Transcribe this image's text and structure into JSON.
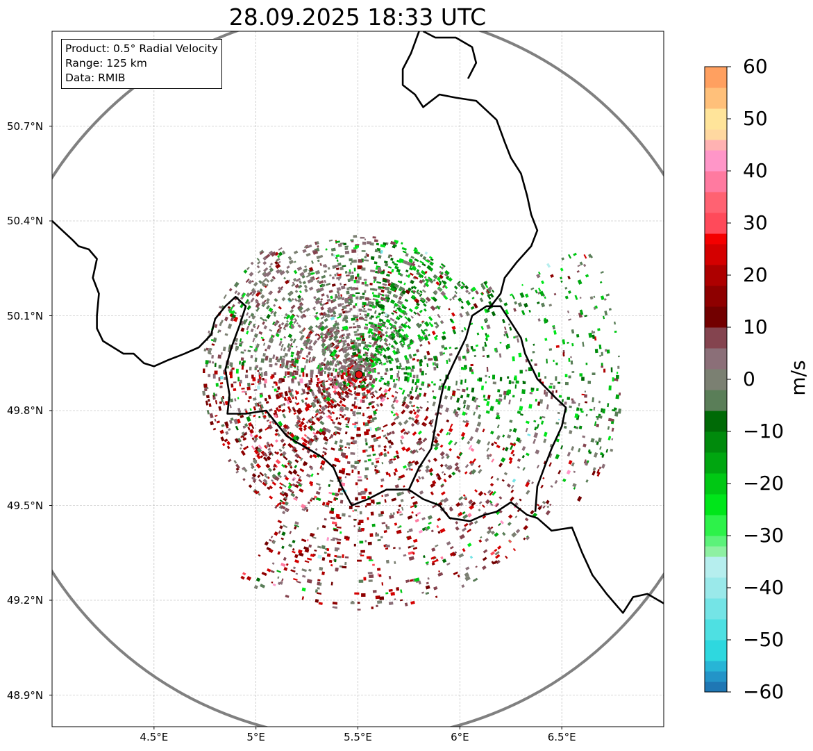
{
  "title": "28.09.2025 18:33 UTC",
  "info": {
    "product": "Product: 0.5° Radial Velocity",
    "range": "Range: 125 km",
    "data": "Data: RMIB"
  },
  "map_extent": {
    "lon_min": 4.0,
    "lon_max": 7.0,
    "lat_min": 48.8,
    "lat_max": 51.0
  },
  "lat_ticks": [
    {
      "value": 50.7,
      "label": "50.7°N"
    },
    {
      "value": 50.4,
      "label": "50.4°N"
    },
    {
      "value": 50.1,
      "label": "50.1°N"
    },
    {
      "value": 49.8,
      "label": "49.8°N"
    },
    {
      "value": 49.5,
      "label": "49.5°N"
    },
    {
      "value": 49.2,
      "label": "49.2°N"
    },
    {
      "value": 48.9,
      "label": "48.9°N"
    }
  ],
  "lon_ticks": [
    {
      "value": 4.5,
      "label": "4.5°E"
    },
    {
      "value": 5.0,
      "label": "5°E"
    },
    {
      "value": 5.5,
      "label": "5.5°E"
    },
    {
      "value": 6.0,
      "label": "6°E"
    },
    {
      "value": 6.5,
      "label": "6.5°E"
    }
  ],
  "radar_site": {
    "lon": 5.505,
    "lat": 49.914,
    "color": "#e81010"
  },
  "range_ring_km": 125,
  "colorbar": {
    "label": "m/s",
    "min": -60,
    "max": 60,
    "ticks": [
      "60",
      "50",
      "40",
      "30",
      "20",
      "10",
      "0",
      "−10",
      "−20",
      "−30",
      "−40",
      "−50",
      "−60"
    ],
    "stops": [
      {
        "from": -60,
        "to": -58,
        "color": "#1f77b4"
      },
      {
        "from": -58,
        "to": -56,
        "color": "#2394c8"
      },
      {
        "from": -56,
        "to": -54,
        "color": "#27b5d6"
      },
      {
        "from": -54,
        "to": -50,
        "color": "#2ed8df"
      },
      {
        "from": -50,
        "to": -46,
        "color": "#4ee0e2"
      },
      {
        "from": -46,
        "to": -42,
        "color": "#74e4e6"
      },
      {
        "from": -42,
        "to": -38,
        "color": "#9ae9ea"
      },
      {
        "from": -38,
        "to": -34,
        "color": "#b6eeee"
      },
      {
        "from": -34,
        "to": -32,
        "color": "#8ef0a2"
      },
      {
        "from": -32,
        "to": -30,
        "color": "#5cf27a"
      },
      {
        "from": -30,
        "to": -26,
        "color": "#2df24a"
      },
      {
        "from": -26,
        "to": -22,
        "color": "#00e61a"
      },
      {
        "from": -22,
        "to": -18,
        "color": "#00c814"
      },
      {
        "from": -18,
        "to": -14,
        "color": "#00a610"
      },
      {
        "from": -14,
        "to": -10,
        "color": "#008a0c"
      },
      {
        "from": -10,
        "to": -6,
        "color": "#006a06"
      },
      {
        "from": -6,
        "to": -2,
        "color": "#5a7e58"
      },
      {
        "from": -2,
        "to": 2,
        "color": "#7b8072"
      },
      {
        "from": 2,
        "to": 6,
        "color": "#8b6f78"
      },
      {
        "from": 6,
        "to": 10,
        "color": "#84444f"
      },
      {
        "from": 10,
        "to": 14,
        "color": "#720000"
      },
      {
        "from": 14,
        "to": 18,
        "color": "#8e0000"
      },
      {
        "from": 18,
        "to": 22,
        "color": "#ad0000"
      },
      {
        "from": 22,
        "to": 26,
        "color": "#d40000"
      },
      {
        "from": 26,
        "to": 28,
        "color": "#f40000"
      },
      {
        "from": 28,
        "to": 32,
        "color": "#ff4a5a"
      },
      {
        "from": 32,
        "to": 36,
        "color": "#ff6272"
      },
      {
        "from": 36,
        "to": 40,
        "color": "#ff7aa0"
      },
      {
        "from": 40,
        "to": 44,
        "color": "#ff96c8"
      },
      {
        "from": 44,
        "to": 46,
        "color": "#ffb2b2"
      },
      {
        "from": 46,
        "to": 48,
        "color": "#ffd8a0"
      },
      {
        "from": 48,
        "to": 52,
        "color": "#ffe49a"
      },
      {
        "from": 52,
        "to": 56,
        "color": "#ffc07a"
      },
      {
        "from": 56,
        "to": 60,
        "color": "#ffa060"
      }
    ]
  },
  "colors": {
    "ring": "#808080",
    "border": "#000000",
    "grid": "#b0b0b0"
  },
  "borders": [
    [
      [
        4.0,
        50.4
      ],
      [
        4.05,
        50.37
      ],
      [
        4.1,
        50.34
      ],
      [
        4.13,
        50.32
      ],
      [
        4.18,
        50.31
      ],
      [
        4.22,
        50.28
      ],
      [
        4.2,
        50.22
      ],
      [
        4.23,
        50.17
      ],
      [
        4.22,
        50.1
      ],
      [
        4.22,
        50.06
      ],
      [
        4.25,
        50.02
      ],
      [
        4.3,
        50.0
      ],
      [
        4.35,
        49.98
      ],
      [
        4.4,
        49.98
      ],
      [
        4.45,
        49.95
      ],
      [
        4.5,
        49.94
      ],
      [
        4.57,
        49.96
      ],
      [
        4.65,
        49.98
      ],
      [
        4.72,
        50.0
      ],
      [
        4.78,
        50.04
      ],
      [
        4.8,
        50.09
      ],
      [
        4.85,
        50.13
      ],
      [
        4.9,
        50.16
      ],
      [
        4.95,
        50.13
      ],
      [
        4.92,
        50.07
      ],
      [
        4.88,
        50.0
      ],
      [
        4.85,
        49.93
      ],
      [
        4.87,
        49.85
      ],
      [
        4.86,
        49.79
      ],
      [
        4.95,
        49.79
      ],
      [
        5.05,
        49.8
      ],
      [
        5.1,
        49.76
      ],
      [
        5.15,
        49.72
      ],
      [
        5.2,
        49.7
      ],
      [
        5.28,
        49.67
      ],
      [
        5.33,
        49.65
      ],
      [
        5.38,
        49.62
      ],
      [
        5.42,
        49.56
      ],
      [
        5.47,
        49.5
      ],
      [
        5.55,
        49.52
      ],
      [
        5.64,
        49.55
      ],
      [
        5.75,
        49.55
      ],
      [
        5.82,
        49.52
      ],
      [
        5.9,
        49.5
      ],
      [
        5.95,
        49.46
      ],
      [
        6.05,
        49.45
      ],
      [
        6.12,
        49.47
      ],
      [
        6.18,
        49.48
      ],
      [
        6.25,
        49.51
      ],
      [
        6.33,
        49.47
      ],
      [
        6.38,
        49.46
      ],
      [
        6.45,
        49.42
      ],
      [
        6.55,
        49.43
      ],
      [
        6.6,
        49.35
      ],
      [
        6.65,
        49.28
      ],
      [
        6.72,
        49.22
      ],
      [
        6.8,
        49.16
      ],
      [
        6.85,
        49.21
      ],
      [
        6.92,
        49.22
      ],
      [
        7.0,
        49.19
      ]
    ],
    [
      [
        5.75,
        49.55
      ],
      [
        5.8,
        49.62
      ],
      [
        5.86,
        49.68
      ],
      [
        5.88,
        49.75
      ],
      [
        5.9,
        49.82
      ],
      [
        5.92,
        49.88
      ],
      [
        5.97,
        49.95
      ],
      [
        6.03,
        50.03
      ],
      [
        6.06,
        50.1
      ],
      [
        6.13,
        50.13
      ],
      [
        6.2,
        50.13
      ],
      [
        6.25,
        50.08
      ],
      [
        6.3,
        50.03
      ],
      [
        6.32,
        49.98
      ],
      [
        6.38,
        49.9
      ],
      [
        6.47,
        49.84
      ],
      [
        6.52,
        49.81
      ],
      [
        6.5,
        49.75
      ],
      [
        6.45,
        49.68
      ],
      [
        6.42,
        49.63
      ],
      [
        6.38,
        49.56
      ],
      [
        6.37,
        49.48
      ]
    ],
    [
      [
        6.14,
        50.12
      ],
      [
        6.2,
        50.17
      ],
      [
        6.22,
        50.22
      ],
      [
        6.28,
        50.27
      ],
      [
        6.35,
        50.32
      ],
      [
        6.38,
        50.37
      ],
      [
        6.35,
        50.42
      ],
      [
        6.33,
        50.48
      ],
      [
        6.3,
        50.55
      ],
      [
        6.25,
        50.6
      ],
      [
        6.22,
        50.65
      ],
      [
        6.18,
        50.72
      ],
      [
        6.13,
        50.75
      ],
      [
        6.08,
        50.78
      ],
      [
        5.98,
        50.79
      ],
      [
        5.9,
        50.8
      ],
      [
        5.82,
        50.76
      ],
      [
        5.78,
        50.8
      ],
      [
        5.72,
        50.83
      ],
      [
        5.72,
        50.88
      ],
      [
        5.76,
        50.93
      ],
      [
        5.8,
        51.0
      ]
    ],
    [
      [
        5.82,
        51.0
      ],
      [
        5.88,
        50.98
      ],
      [
        5.98,
        50.98
      ],
      [
        6.06,
        50.95
      ],
      [
        6.08,
        50.9
      ],
      [
        6.04,
        50.85
      ]
    ]
  ]
}
